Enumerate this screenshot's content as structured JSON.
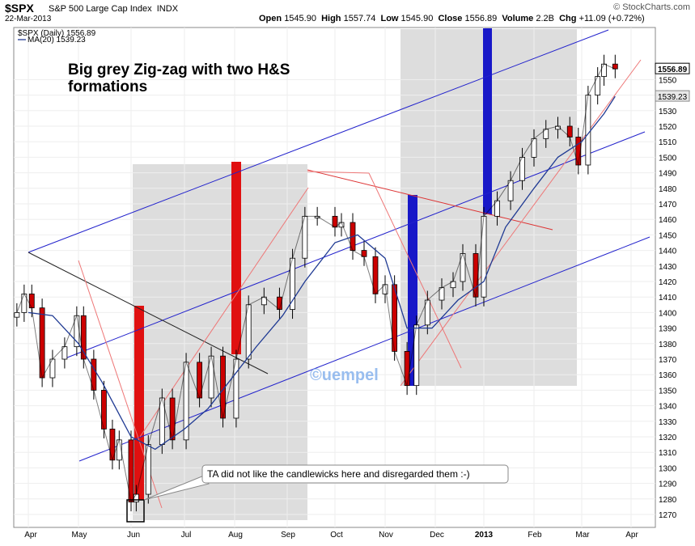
{
  "header": {
    "symbol": "$SPX",
    "name": "S&P 500 Large Cap Index",
    "exchange": "INDX",
    "date": "22-Mar-2013",
    "open_label": "Open",
    "open": "1545.90",
    "high_label": "High",
    "high": "1557.74",
    "low_label": "Low",
    "low": "1545.90",
    "close_label": "Close",
    "close": "1556.89",
    "volume_label": "Volume",
    "volume": "2.2B",
    "chg_label": "Chg",
    "chg": "+11.09 (+0.72%)",
    "brand": "© StockCharts.com"
  },
  "legend": {
    "series1": "$SPX (Daily) 1556.89",
    "series2": "MA(20) 1539.23"
  },
  "annotations": {
    "headline": "Big grey Zig-zag with two H&S formations",
    "watermark": "©uempel",
    "callout": "TA did not like the candlewicks here and disregarded them :-)"
  },
  "colors": {
    "price": "#000000",
    "ma": "#1f3a93",
    "up": "#ffffff",
    "down": "#cc0000",
    "channel": "#2222cc",
    "trend_red": "#dd3333",
    "grey_zone": "#dddddd",
    "bar_red": "#e01010",
    "bar_blue": "#1818c8"
  },
  "chart_data": {
    "type": "line",
    "y_scale": "linear",
    "ylim": [
      1262,
      1564
    ],
    "y_ticks": [
      1270,
      1280,
      1290,
      1300,
      1310,
      1320,
      1330,
      1340,
      1350,
      1360,
      1370,
      1380,
      1390,
      1400,
      1410,
      1420,
      1430,
      1440,
      1450,
      1460,
      1470,
      1480,
      1490,
      1500,
      1510,
      1520,
      1530,
      1540,
      1550
    ],
    "x_tick_labels": [
      "Apr",
      "May",
      "Jun",
      "Jul",
      "Aug",
      "Sep",
      "Oct",
      "Nov",
      "Dec",
      "2013",
      "Feb",
      "Mar",
      "Apr"
    ],
    "last_price_tag": "1556.89",
    "ma_tag": "1539.23",
    "series": [
      {
        "name": "$SPX (Daily)",
        "dates": [
          "2012-03-22",
          "2012-03-29",
          "2012-04-04",
          "2012-04-10",
          "2012-04-16",
          "2012-04-23",
          "2012-04-30",
          "2012-05-04",
          "2012-05-10",
          "2012-05-16",
          "2012-05-21",
          "2012-05-25",
          "2012-06-01",
          "2012-06-04",
          "2012-06-11",
          "2012-06-19",
          "2012-06-25",
          "2012-07-03",
          "2012-07-11",
          "2012-07-18",
          "2012-07-25",
          "2012-08-02",
          "2012-08-10",
          "2012-08-20",
          "2012-08-30",
          "2012-09-07",
          "2012-09-14",
          "2012-09-21",
          "2012-10-01",
          "2012-10-05",
          "2012-10-12",
          "2012-10-19",
          "2012-10-26",
          "2012-11-01",
          "2012-11-07",
          "2012-11-15",
          "2012-11-21",
          "2012-11-28",
          "2012-12-07",
          "2012-12-14",
          "2012-12-20",
          "2012-12-28",
          "2013-01-02",
          "2013-01-10",
          "2013-01-18",
          "2013-01-25",
          "2013-02-01",
          "2013-02-08",
          "2013-02-15",
          "2013-02-22",
          "2013-02-27",
          "2013-03-05",
          "2013-03-11",
          "2013-03-15",
          "2013-03-22"
        ],
        "close": [
          1400,
          1412,
          1403,
          1358,
          1370,
          1378,
          1398,
          1370,
          1350,
          1325,
          1305,
          1318,
          1278,
          1283,
          1315,
          1345,
          1318,
          1368,
          1345,
          1372,
          1332,
          1370,
          1405,
          1410,
          1402,
          1435,
          1462,
          1462,
          1455,
          1458,
          1440,
          1436,
          1412,
          1418,
          1375,
          1353,
          1392,
          1408,
          1416,
          1420,
          1438,
          1410,
          1462,
          1472,
          1485,
          1500,
          1512,
          1518,
          1520,
          1513,
          1495,
          1540,
          1552,
          1560,
          1556.89
        ]
      },
      {
        "name": "MA(20)",
        "dates": [
          "2012-04-02",
          "2012-04-16",
          "2012-05-01",
          "2012-05-15",
          "2012-06-01",
          "2012-06-15",
          "2012-07-02",
          "2012-07-16",
          "2012-08-01",
          "2012-08-15",
          "2012-09-01",
          "2012-09-14",
          "2012-10-01",
          "2012-10-15",
          "2012-11-01",
          "2012-11-15",
          "2012-12-01",
          "2012-12-17",
          "2013-01-02",
          "2013-01-15",
          "2013-02-01",
          "2013-02-15",
          "2013-03-01",
          "2013-03-15",
          "2013-03-22"
        ],
        "values": [
          1400,
          1398,
          1380,
          1355,
          1320,
          1312,
          1325,
          1338,
          1360,
          1378,
          1398,
          1420,
          1445,
          1450,
          1435,
          1390,
          1390,
          1408,
          1420,
          1455,
          1480,
          1500,
          1510,
          1528,
          1539.23
        ]
      }
    ]
  }
}
